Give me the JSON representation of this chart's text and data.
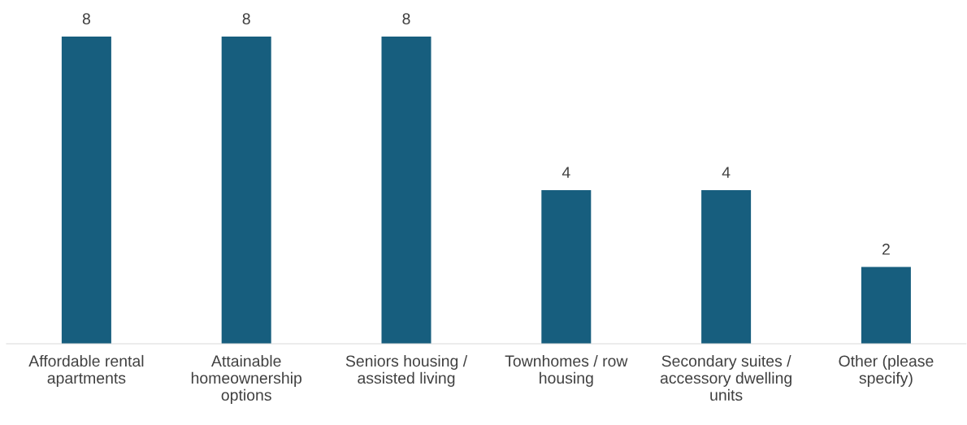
{
  "chart_data": {
    "type": "bar",
    "categories": [
      "Affordable rental\napartments",
      "Attainable\nhomeownership\noptions",
      "Seniors housing /\nassisted living",
      "Townhomes / row\nhousing",
      "Secondary suites /\naccessory dwelling\nunits",
      "Other (please\nspecify)"
    ],
    "values": [
      8,
      8,
      8,
      4,
      4,
      2
    ],
    "color": "#175e7e",
    "ylim": [
      0,
      8
    ],
    "data_labels": true,
    "tick_labels": "x",
    "grid": false,
    "legend": false
  }
}
